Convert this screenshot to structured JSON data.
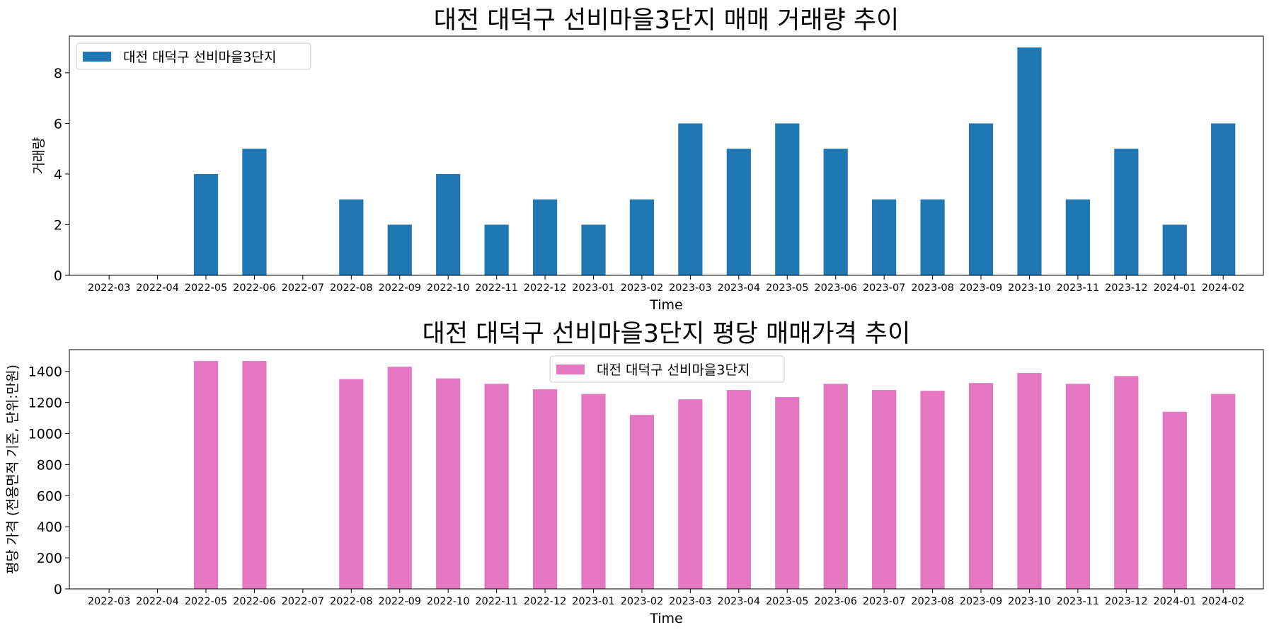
{
  "chart_data": [
    {
      "type": "bar",
      "title": "대전 대덕구 선비마을3단지 매매 거래량 추이",
      "xlabel": "Time",
      "ylabel": "거래량",
      "ylim": [
        0,
        9.45
      ],
      "yticks": [
        0,
        2,
        4,
        6,
        8
      ],
      "legend_position": "top-left",
      "color": "#1f77b4",
      "categories": [
        "2022-03",
        "2022-04",
        "2022-05",
        "2022-06",
        "2022-07",
        "2022-08",
        "2022-09",
        "2022-10",
        "2022-11",
        "2022-12",
        "2023-01",
        "2023-02",
        "2023-03",
        "2023-04",
        "2023-05",
        "2023-06",
        "2023-07",
        "2023-08",
        "2023-09",
        "2023-10",
        "2023-11",
        "2023-12",
        "2024-01",
        "2024-02"
      ],
      "series": [
        {
          "name": "대전 대덕구 선비마을3단지",
          "values": [
            0,
            0,
            4,
            5,
            0,
            3,
            2,
            4,
            2,
            3,
            2,
            3,
            6,
            5,
            6,
            5,
            3,
            3,
            6,
            9,
            3,
            5,
            2,
            6
          ]
        }
      ]
    },
    {
      "type": "bar",
      "title": "대전 대덕구 선비마을3단지 평당 매매가격 추이",
      "xlabel": "Time",
      "ylabel": "평당 가격 (전용면적 기준, 단위:만원)",
      "ylim": [
        0,
        1540
      ],
      "yticks": [
        0,
        200,
        400,
        600,
        800,
        1000,
        1200,
        1400
      ],
      "legend_position": "top-center",
      "color": "#e377c2",
      "categories": [
        "2022-03",
        "2022-04",
        "2022-05",
        "2022-06",
        "2022-07",
        "2022-08",
        "2022-09",
        "2022-10",
        "2022-11",
        "2022-12",
        "2023-01",
        "2023-02",
        "2023-03",
        "2023-04",
        "2023-05",
        "2023-06",
        "2023-07",
        "2023-08",
        "2023-09",
        "2023-10",
        "2023-11",
        "2023-12",
        "2024-01",
        "2024-02"
      ],
      "series": [
        {
          "name": "대전 대덕구 선비마을3단지",
          "values": [
            0,
            0,
            1467,
            1467,
            0,
            1350,
            1430,
            1355,
            1320,
            1285,
            1255,
            1120,
            1220,
            1280,
            1235,
            1320,
            1280,
            1275,
            1325,
            1390,
            1320,
            1370,
            1140,
            1255
          ]
        }
      ]
    }
  ]
}
